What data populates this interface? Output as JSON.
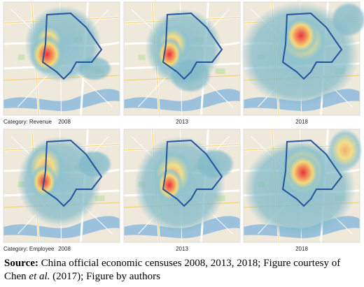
{
  "rows": [
    {
      "label": "Category: Revenue",
      "panels": [
        {
          "year": "2008"
        },
        {
          "year": "2013"
        },
        {
          "year": "2018"
        }
      ]
    },
    {
      "label": "Category: Employee",
      "panels": [
        {
          "year": "2008"
        },
        {
          "year": "2013"
        },
        {
          "year": "2018"
        }
      ]
    }
  ],
  "caption": {
    "label": "Source:",
    "text_1": "China official economic censuses 2008, 2013, 2018; Figure courtesy of Chen",
    "italic": "et al.",
    "text_2": "(2017); Figure by authors"
  }
}
